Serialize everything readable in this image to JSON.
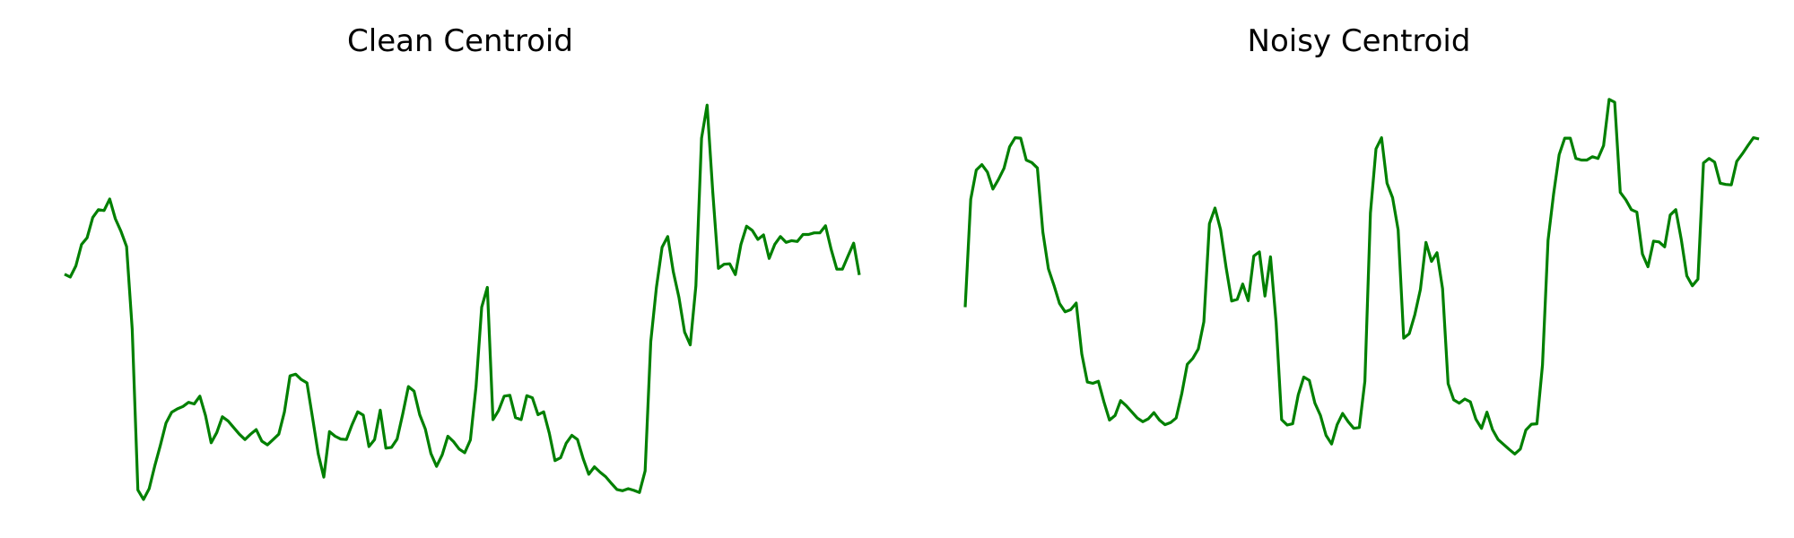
{
  "line_color": "#008000",
  "background": "#ffffff",
  "chart_data": [
    {
      "type": "line",
      "title": "Clean Centroid",
      "xlabel": "",
      "ylabel": "",
      "axes": "off",
      "grid": false,
      "legend": "none",
      "series": [
        {
          "values": [
            0.545,
            0.538,
            0.565,
            0.617,
            0.633,
            0.682,
            0.701,
            0.699,
            0.727,
            0.679,
            0.649,
            0.612,
            0.412,
            0.023,
            0.0,
            0.026,
            0.081,
            0.131,
            0.185,
            0.211,
            0.219,
            0.225,
            0.235,
            0.231,
            0.25,
            0.203,
            0.137,
            0.162,
            0.2,
            0.19,
            0.174,
            0.158,
            0.145,
            0.158,
            0.169,
            0.141,
            0.132,
            0.145,
            0.158,
            0.212,
            0.299,
            0.303,
            0.29,
            0.282,
            0.197,
            0.11,
            0.054,
            0.164,
            0.153,
            0.146,
            0.145,
            0.181,
            0.212,
            0.204,
            0.128,
            0.145,
            0.216,
            0.124,
            0.126,
            0.146,
            0.207,
            0.273,
            0.262,
            0.205,
            0.17,
            0.111,
            0.08,
            0.108,
            0.153,
            0.14,
            0.122,
            0.113,
            0.144,
            0.273,
            0.465,
            0.513,
            0.193,
            0.215,
            0.25,
            0.252,
            0.198,
            0.193,
            0.251,
            0.246,
            0.205,
            0.212,
            0.16,
            0.094,
            0.101,
            0.136,
            0.155,
            0.145,
            0.099,
            0.061,
            0.079,
            0.066,
            0.055,
            0.039,
            0.024,
            0.021,
            0.026,
            0.022,
            0.017,
            0.069,
            0.382,
            0.513,
            0.61,
            0.636,
            0.551,
            0.489,
            0.405,
            0.374,
            0.517,
            0.874,
            0.954,
            0.744,
            0.559,
            0.569,
            0.57,
            0.544,
            0.617,
            0.661,
            0.651,
            0.629,
            0.64,
            0.583,
            0.617,
            0.636,
            0.622,
            0.626,
            0.624,
            0.641,
            0.641,
            0.645,
            0.645,
            0.662,
            0.605,
            0.557,
            0.557,
            0.589,
            0.62,
            0.543
          ]
        }
      ]
    },
    {
      "type": "line",
      "title": "Noisy Centroid",
      "xlabel": "",
      "ylabel": "",
      "axes": "off",
      "grid": false,
      "legend": "none",
      "series": [
        {
          "values": [
            0.465,
            0.726,
            0.797,
            0.81,
            0.792,
            0.751,
            0.774,
            0.801,
            0.853,
            0.875,
            0.874,
            0.821,
            0.815,
            0.802,
            0.647,
            0.558,
            0.518,
            0.474,
            0.454,
            0.459,
            0.475,
            0.352,
            0.284,
            0.281,
            0.286,
            0.236,
            0.192,
            0.203,
            0.239,
            0.227,
            0.212,
            0.197,
            0.188,
            0.195,
            0.21,
            0.192,
            0.181,
            0.186,
            0.197,
            0.255,
            0.327,
            0.341,
            0.364,
            0.43,
            0.667,
            0.705,
            0.653,
            0.561,
            0.48,
            0.484,
            0.521,
            0.481,
            0.589,
            0.599,
            0.492,
            0.587,
            0.429,
            0.193,
            0.18,
            0.183,
            0.253,
            0.296,
            0.288,
            0.233,
            0.203,
            0.155,
            0.134,
            0.181,
            0.208,
            0.188,
            0.172,
            0.174,
            0.286,
            0.693,
            0.848,
            0.875,
            0.765,
            0.73,
            0.652,
            0.39,
            0.401,
            0.447,
            0.508,
            0.622,
            0.576,
            0.597,
            0.51,
            0.28,
            0.241,
            0.233,
            0.243,
            0.236,
            0.194,
            0.172,
            0.211,
            0.169,
            0.145,
            0.133,
            0.121,
            0.11,
            0.122,
            0.168,
            0.182,
            0.183,
            0.325,
            0.627,
            0.739,
            0.834,
            0.874,
            0.874,
            0.825,
            0.821,
            0.821,
            0.829,
            0.825,
            0.856,
            0.968,
            0.961,
            0.743,
            0.725,
            0.701,
            0.695,
            0.594,
            0.563,
            0.625,
            0.623,
            0.611,
            0.688,
            0.701,
            0.628,
            0.541,
            0.517,
            0.533,
            0.814,
            0.825,
            0.816,
            0.765,
            0.762,
            0.761,
            0.818,
            0.836,
            0.856,
            0.875,
            0.872
          ]
        }
      ]
    }
  ]
}
